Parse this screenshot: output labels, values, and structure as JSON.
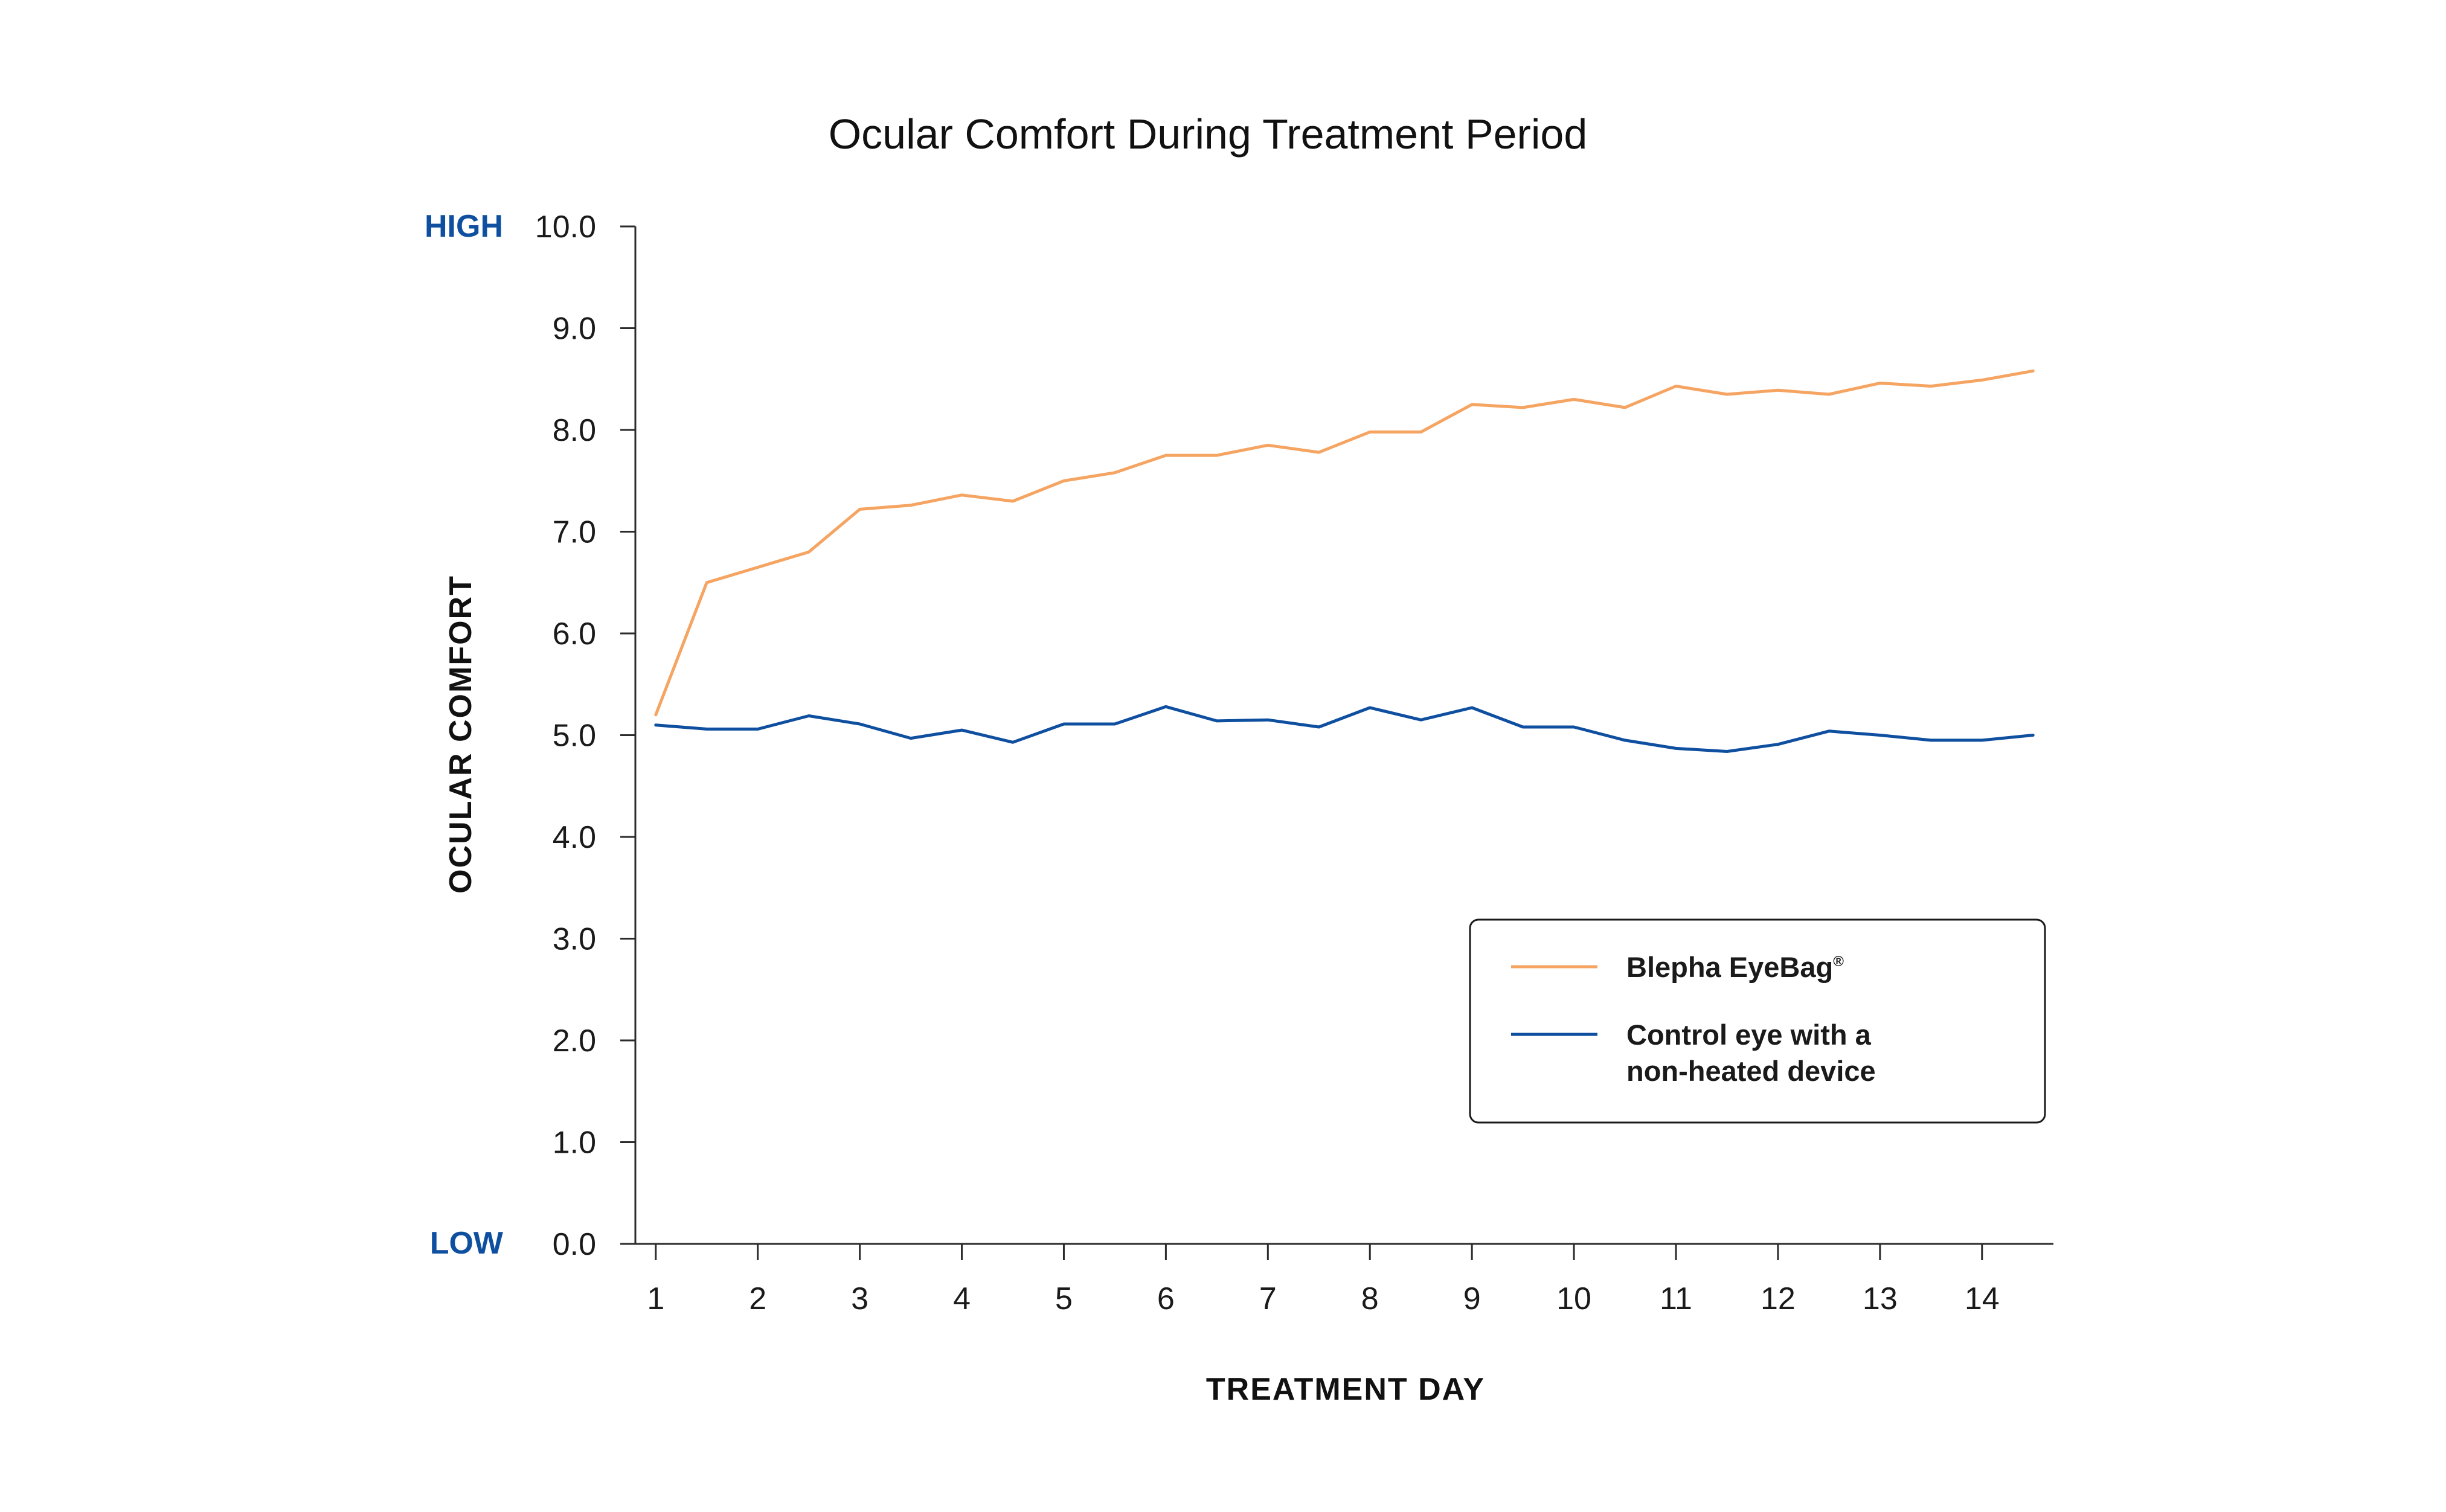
{
  "chart_data": {
    "type": "line",
    "title": "Ocular Comfort During Treatment Period",
    "xlabel": "TREATMENT DAY",
    "ylabel": "OCULAR COMFORT",
    "y_high_label": "HIGH",
    "y_low_label": "LOW",
    "ylim": [
      0,
      10
    ],
    "xlim": [
      0.8,
      14.7
    ],
    "x_ticks": [
      1,
      2,
      3,
      4,
      5,
      6,
      7,
      8,
      9,
      10,
      11,
      12,
      13,
      14
    ],
    "x_tick_labels": [
      "1",
      "2",
      "3",
      "4",
      "5",
      "6",
      "7",
      "8",
      "9",
      "10",
      "11",
      "12",
      "13",
      "14"
    ],
    "y_ticks": [
      0,
      1,
      2,
      3,
      4,
      5,
      6,
      7,
      8,
      9,
      10
    ],
    "y_tick_labels": [
      "0.0",
      "1.0",
      "2.0",
      "3.0",
      "4.0",
      "5.0",
      "6.0",
      "7.0",
      "8.0",
      "9.0",
      "10.0"
    ],
    "grid": false,
    "legend_position": "bottom-right",
    "x": [
      1,
      1.5,
      2,
      2.5,
      3,
      3.5,
      4,
      4.5,
      5,
      5.5,
      6,
      6.5,
      7,
      7.5,
      8,
      8.5,
      9,
      9.5,
      10,
      10.5,
      11,
      11.5,
      12,
      12.5,
      13,
      13.5,
      14,
      14.5
    ],
    "series": [
      {
        "name": "Blepha EyeBag",
        "name_mark": "®",
        "color": "#f5a462",
        "values": [
          5.2,
          6.5,
          6.65,
          6.8,
          7.22,
          7.26,
          7.36,
          7.3,
          7.5,
          7.58,
          7.75,
          7.75,
          7.85,
          7.78,
          7.98,
          7.98,
          8.25,
          8.22,
          8.3,
          8.22,
          8.43,
          8.35,
          8.39,
          8.35,
          8.46,
          8.43,
          8.49,
          8.58
        ]
      },
      {
        "name": "Control eye with a non-heated device",
        "name_lines": [
          "Control eye with a",
          "non-heated device"
        ],
        "color": "#0f4fa0",
        "values": [
          5.1,
          5.06,
          5.06,
          5.19,
          5.11,
          4.97,
          5.05,
          4.93,
          5.11,
          5.11,
          5.28,
          5.14,
          5.15,
          5.08,
          5.27,
          5.15,
          5.27,
          5.08,
          5.08,
          4.95,
          4.87,
          4.84,
          4.91,
          5.04,
          5.0,
          4.95,
          4.95,
          5.0
        ]
      }
    ],
    "colors": {
      "axis": "#2b2b2b",
      "scale_word": "#0f4fa0",
      "text": "#1a1a1a"
    }
  }
}
